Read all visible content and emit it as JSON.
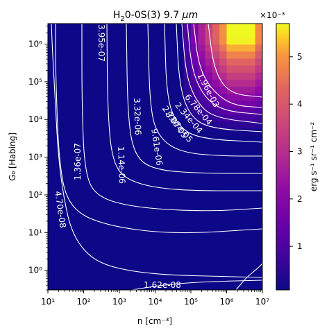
{
  "chart_data": {
    "type": "heatmap",
    "title": "H₂ 0-0S(3) 9.7 μm",
    "title_parts": {
      "species": "H",
      "sub": "2",
      "rest": "0-0S(3) 9.7 ",
      "unit": "μm"
    },
    "xlabel": "n [cm⁻³]",
    "ylabel": "G₀ [Habing]",
    "x_scale": "log",
    "y_scale": "log",
    "xlim": [
      10,
      10000000
    ],
    "ylim": [
      0.3,
      3500000
    ],
    "x_ticks": [
      {
        "value": 10,
        "label": "10¹"
      },
      {
        "value": 100,
        "label": "10²"
      },
      {
        "value": 1000,
        "label": "10³"
      },
      {
        "value": 10000,
        "label": "10⁴"
      },
      {
        "value": 100000,
        "label": "10⁵"
      },
      {
        "value": 1000000,
        "label": "10⁶"
      },
      {
        "value": 10000000,
        "label": "10⁷"
      }
    ],
    "y_ticks": [
      {
        "value": 1,
        "label": "10⁰"
      },
      {
        "value": 10,
        "label": "10¹"
      },
      {
        "value": 100,
        "label": "10²"
      },
      {
        "value": 1000,
        "label": "10³"
      },
      {
        "value": 10000,
        "label": "10⁴"
      },
      {
        "value": 100000,
        "label": "10⁵"
      },
      {
        "value": 1000000,
        "label": "10⁶"
      }
    ],
    "colorbar": {
      "colormap": "plasma",
      "min": 8e-05,
      "max": 0.0057,
      "multiplier_label": "×10⁻³",
      "label": "erg s⁻¹ sr⁻¹ cm⁻²",
      "ticks": [
        {
          "value": 0.001,
          "label": "1"
        },
        {
          "value": 0.002,
          "label": "2"
        },
        {
          "value": 0.003,
          "label": "3"
        },
        {
          "value": 0.004,
          "label": "4"
        },
        {
          "value": 0.005,
          "label": "5"
        }
      ]
    },
    "contour_labels": [
      {
        "text": "3.95e-07",
        "level": 3.95e-07
      },
      {
        "text": "1.96e-03",
        "level": 0.00196
      },
      {
        "text": "6.78e-04",
        "level": 0.000678
      },
      {
        "text": "2.34e-04",
        "level": 0.000234
      },
      {
        "text": "8.07e-05",
        "level": 8.07e-05
      },
      {
        "text": "2.78e-05",
        "level": 2.78e-05
      },
      {
        "text": "3.32e-06",
        "level": 3.32e-06
      },
      {
        "text": "9.61e-06",
        "level": 9.61e-06
      },
      {
        "text": "1.14e-06",
        "level": 1.14e-06
      },
      {
        "text": "1.36e-07",
        "level": 1.36e-07
      },
      {
        "text": "4.70e-08",
        "level": 4.7e-08
      },
      {
        "text": "1.62e-08",
        "level": 1.62e-08
      }
    ],
    "hot_region": {
      "description_values": {
        "peak_n": 3000000,
        "peak_G0": 2000000,
        "peak_value": 0.0057
      }
    }
  }
}
